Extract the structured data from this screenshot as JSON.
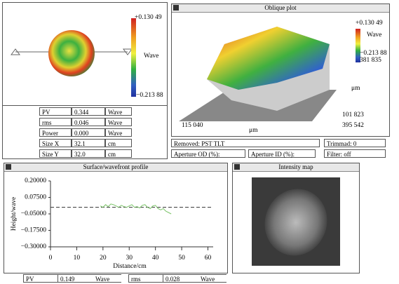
{
  "wavefront_map": {
    "scale_max": "+0.130 49",
    "unit": "Wave",
    "scale_min": "−0.213 88",
    "stats": [
      [
        "PV",
        "0.344",
        "Wave"
      ],
      [
        "rms",
        "0.046",
        "Wave"
      ],
      [
        "Power",
        "0.000",
        "Wave"
      ],
      [
        "Size X",
        "32.1",
        "cm"
      ],
      [
        "Size Y",
        "32.0",
        "cm"
      ]
    ]
  },
  "oblique_plot": {
    "title": "Oblique plot",
    "scale_max": "+0.130 49",
    "unit": "Wave",
    "scale_min": "−0.213 88",
    "y_top": "381 835",
    "y_unit": "μm",
    "y_bottom": "101 823",
    "x_left": "115 040",
    "x_unit": "μm",
    "x_right": "395 542"
  },
  "info": {
    "removed": "Removed: PST TLT",
    "trimmed": "Trimmad: 0",
    "aperture_od": "Aperture OD (%):",
    "aperture_id": "Aperture ID (%):",
    "filter": "Filter: off"
  },
  "intensity_map": {
    "title": "Intensity map"
  },
  "profile_stats": [
    [
      "PV",
      "0.149",
      "Wave"
    ],
    [
      "rms",
      "0.028",
      "Wave"
    ]
  ],
  "chart_data": {
    "type": "line",
    "title": "Surface/wavefront profile",
    "y_label": "Height/wave",
    "x_label": "Distance/cm",
    "x": [
      19,
      20,
      21,
      22,
      23,
      24,
      25,
      26,
      27,
      28,
      29,
      30,
      31,
      32,
      33,
      34,
      35,
      36,
      37,
      38,
      39,
      40,
      41,
      42,
      43,
      44,
      45,
      46
    ],
    "series": [
      {
        "color": "#7cc46a",
        "values": [
          0.01,
          0.0,
          0.02,
          0.005,
          0.025,
          0.02,
          0.01,
          0.0,
          0.015,
          0.005,
          0.0,
          0.01,
          0.02,
          0.0,
          0.005,
          -0.005,
          0.015,
          0.02,
          0.0,
          -0.01,
          0.01,
          0.015,
          -0.01,
          -0.02,
          -0.01,
          -0.03,
          -0.04,
          -0.05
        ]
      }
    ],
    "xlim": [
      0,
      62
    ],
    "xticks": [
      0,
      10,
      20,
      30,
      40,
      50,
      60
    ],
    "ylim": [
      -0.3,
      0.2
    ],
    "yticks": [
      {
        "value": 0.2,
        "label": "0.20000"
      },
      {
        "value": 0.075,
        "label": "0.07500"
      },
      {
        "value": -0.05,
        "label": "−0.05000"
      },
      {
        "value": -0.175,
        "label": "−0.17500"
      },
      {
        "value": -0.3,
        "label": "−0.30000"
      }
    ]
  }
}
